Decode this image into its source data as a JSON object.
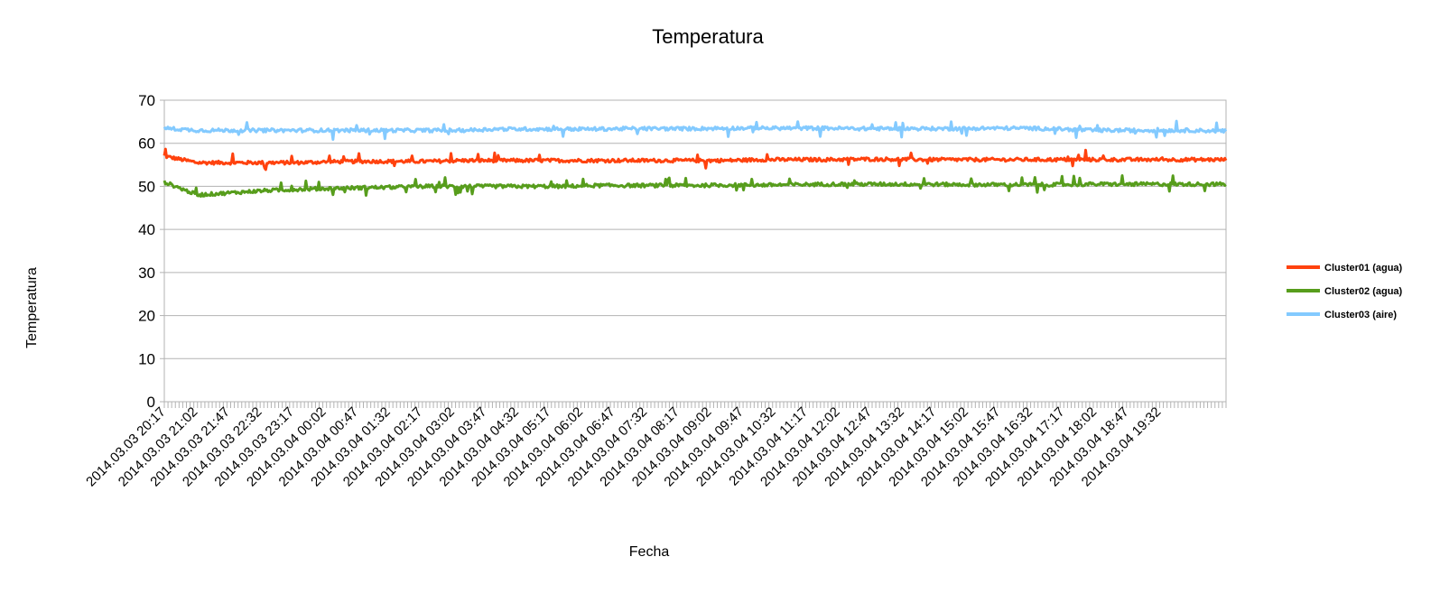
{
  "chart_data": {
    "type": "line",
    "title": "Temperatura",
    "xlabel": "Fecha",
    "ylabel": "Temperatura",
    "ylim": [
      0,
      70
    ],
    "yticks": [
      0,
      10,
      20,
      30,
      40,
      50,
      60,
      70
    ],
    "grid": true,
    "legend_position": "right",
    "x_start": "2014.03.03 20:17",
    "x_end": "2014.03.04 20:17",
    "x_tick_labels": [
      "2014.03.03 20:17",
      "2014.03.03 21:02",
      "2014.03.03 21:47",
      "2014.03.03 22:32",
      "2014.03.03 23:17",
      "2014.03.04 00:02",
      "2014.03.04 00:47",
      "2014.03.04 01:32",
      "2014.03.04 02:17",
      "2014.03.04 03:02",
      "2014.03.04 03:47",
      "2014.03.04 04:32",
      "2014.03.04 05:17",
      "2014.03.04 06:02",
      "2014.03.04 06:47",
      "2014.03.04 07:32",
      "2014.03.04 08:17",
      "2014.03.04 09:02",
      "2014.03.04 09:47",
      "2014.03.04 10:32",
      "2014.03.04 11:17",
      "2014.03.04 12:02",
      "2014.03.04 12:47",
      "2014.03.04 13:32",
      "2014.03.04 14:17",
      "2014.03.04 15:02",
      "2014.03.04 15:47",
      "2014.03.04 16:32",
      "2014.03.04 17:17",
      "2014.03.04 18:02",
      "2014.03.04 18:47",
      "2014.03.04 19:32"
    ],
    "series": [
      {
        "name": "Cluster01 (agua)",
        "color": "#ff420e",
        "values": [
          57,
          55.5,
          55.5,
          55.5,
          55.5,
          55.7,
          55.8,
          55.8,
          55.8,
          56,
          56,
          56,
          56,
          56,
          56,
          56,
          56,
          56,
          56.2,
          56.2,
          56.2,
          56.3,
          56.3,
          56.2,
          56.2,
          56.2,
          56.2,
          56.2,
          56.2,
          56.2,
          56.2,
          56.2,
          56.2
        ]
      },
      {
        "name": "Cluster02 (agua)",
        "color": "#579d1c",
        "values": [
          51,
          48,
          48.5,
          49,
          49.3,
          49.5,
          49.7,
          49.8,
          50,
          50,
          50,
          50,
          50,
          50.2,
          50.2,
          50.2,
          50.2,
          50.3,
          50.3,
          50.4,
          50.5,
          50.5,
          50.5,
          50.5,
          50.4,
          50.4,
          50.4,
          50.4,
          50.5,
          50.5,
          50.5,
          50.5,
          50.5
        ]
      },
      {
        "name": "Cluster03 (aire)",
        "color": "#83caff",
        "values": [
          63.5,
          63,
          63,
          63,
          63,
          63,
          63,
          63,
          63,
          63,
          63.3,
          63.3,
          63.3,
          63.3,
          63.4,
          63.4,
          63.4,
          63.5,
          63.5,
          63.5,
          63.5,
          63.4,
          63.4,
          63.4,
          63.4,
          63.5,
          63.5,
          63.3,
          63,
          63,
          63,
          63,
          62.8
        ]
      }
    ]
  }
}
